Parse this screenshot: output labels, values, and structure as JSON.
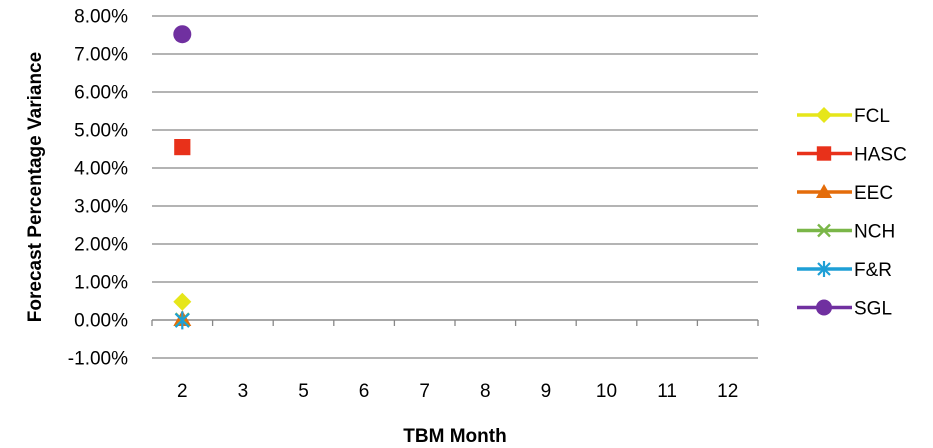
{
  "chart_data": {
    "type": "scatter",
    "xlabel": "TBM Month",
    "ylabel": "Forecast Percentage Variance",
    "categories": [
      "2",
      "3",
      "5",
      "6",
      "7",
      "8",
      "9",
      "10",
      "11",
      "12"
    ],
    "ylim": [
      -0.01,
      0.08
    ],
    "yticks": [
      "-1.00%",
      "0.00%",
      "1.00%",
      "2.00%",
      "3.00%",
      "4.00%",
      "5.00%",
      "6.00%",
      "7.00%",
      "8.00%"
    ],
    "grid": true,
    "legend_position": "right",
    "series": [
      {
        "name": "FCL",
        "color": "#E6E61A",
        "marker": "diamond",
        "values": [
          0.0048,
          null,
          null,
          null,
          null,
          null,
          null,
          null,
          null,
          null
        ]
      },
      {
        "name": "HASC",
        "color": "#E8311A",
        "marker": "square",
        "values": [
          0.0455,
          null,
          null,
          null,
          null,
          null,
          null,
          null,
          null,
          null
        ]
      },
      {
        "name": "EEC",
        "color": "#E46C0A",
        "marker": "triangle",
        "values": [
          0.0002,
          null,
          null,
          null,
          null,
          null,
          null,
          null,
          null,
          null
        ]
      },
      {
        "name": "NCH",
        "color": "#7AB648",
        "marker": "x",
        "values": [
          0.0,
          null,
          null,
          null,
          null,
          null,
          null,
          null,
          null,
          null
        ]
      },
      {
        "name": "F&R",
        "color": "#1E9FD6",
        "marker": "asterisk",
        "values": [
          -0.0001,
          null,
          null,
          null,
          null,
          null,
          null,
          null,
          null,
          null
        ]
      },
      {
        "name": "SGL",
        "color": "#7030A0",
        "marker": "circle",
        "values": [
          0.0752,
          null,
          null,
          null,
          null,
          null,
          null,
          null,
          null,
          null
        ]
      }
    ]
  }
}
